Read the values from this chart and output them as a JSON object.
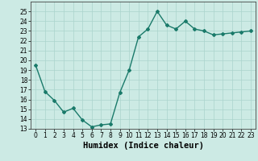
{
  "x": [
    0,
    1,
    2,
    3,
    4,
    5,
    6,
    7,
    8,
    9,
    10,
    11,
    12,
    13,
    14,
    15,
    16,
    17,
    18,
    19,
    20,
    21,
    22,
    23
  ],
  "y": [
    19.5,
    16.8,
    15.9,
    14.7,
    15.1,
    13.9,
    13.2,
    13.4,
    13.5,
    16.7,
    19.0,
    22.4,
    23.2,
    25.0,
    23.6,
    23.2,
    24.0,
    23.2,
    23.0,
    22.6,
    22.7,
    22.8,
    22.9,
    23.0
  ],
  "line_color": "#1a7a6a",
  "marker": "D",
  "marker_size": 2,
  "bg_color": "#cceae4",
  "grid_color": "#aad4cc",
  "xlabel": "Humidex (Indice chaleur)",
  "ylim": [
    13,
    26
  ],
  "xlim": [
    -0.5,
    23.5
  ],
  "yticks": [
    13,
    14,
    15,
    16,
    17,
    18,
    19,
    20,
    21,
    22,
    23,
    24,
    25
  ],
  "xticks": [
    0,
    1,
    2,
    3,
    4,
    5,
    6,
    7,
    8,
    9,
    10,
    11,
    12,
    13,
    14,
    15,
    16,
    17,
    18,
    19,
    20,
    21,
    22,
    23
  ],
  "tick_fontsize": 5.5,
  "xlabel_fontsize": 7.5,
  "line_width": 1.0
}
